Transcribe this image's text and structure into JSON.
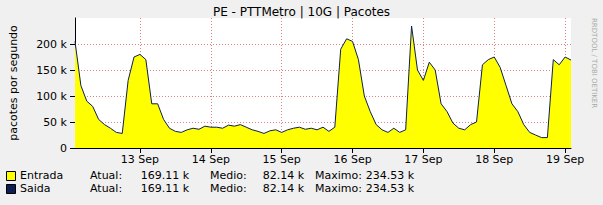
{
  "chart_data": {
    "type": "area",
    "title": "PE - PTTMetro | 10G | Pacotes",
    "y_label": "pacotes por segundo",
    "side_text": "RRDTOOL / TOBI OETIKER",
    "categories": [
      null,
      null,
      null,
      null,
      null,
      null,
      null,
      null,
      null,
      null,
      null,
      "13 Sep",
      null,
      null,
      null,
      null,
      null,
      null,
      null,
      null,
      null,
      null,
      null,
      "14 Sep",
      null,
      null,
      null,
      null,
      null,
      null,
      null,
      null,
      null,
      null,
      null,
      "15 Sep",
      null,
      null,
      null,
      null,
      null,
      null,
      null,
      null,
      null,
      null,
      null,
      "16 Sep",
      null,
      null,
      null,
      null,
      null,
      null,
      null,
      null,
      null,
      null,
      null,
      "17 Sep",
      null,
      null,
      null,
      null,
      null,
      null,
      null,
      null,
      null,
      null,
      null,
      "18 Sep",
      null,
      null,
      null,
      null,
      null,
      null,
      null,
      null,
      null,
      null,
      null,
      "19 Sep",
      null
    ],
    "series": [
      {
        "name": "Entrada",
        "color": "#ffff00",
        "type": "area",
        "stats": [
          {
            "label": "Atual:",
            "value": "169.11 k"
          },
          {
            "label": "Medio:",
            "value": "82.14 k"
          },
          {
            "label": "Maximo:",
            "value": "234.53 k"
          }
        ],
        "values": [
          205000,
          120000,
          90000,
          80000,
          55000,
          45000,
          38000,
          30000,
          28000,
          130000,
          175000,
          180000,
          170000,
          85000,
          85000,
          55000,
          38000,
          32000,
          30000,
          35000,
          38000,
          36000,
          42000,
          40000,
          40000,
          38000,
          44000,
          42000,
          45000,
          40000,
          35000,
          32000,
          28000,
          33000,
          35000,
          30000,
          35000,
          38000,
          40000,
          36000,
          38000,
          35000,
          40000,
          32000,
          40000,
          190000,
          210000,
          205000,
          170000,
          100000,
          70000,
          45000,
          35000,
          30000,
          38000,
          30000,
          35000,
          234530,
          150000,
          130000,
          165000,
          150000,
          85000,
          70000,
          48000,
          38000,
          35000,
          45000,
          50000,
          160000,
          170000,
          175000,
          155000,
          120000,
          85000,
          70000,
          45000,
          30000,
          25000,
          20000,
          20000,
          170000,
          160000,
          175000,
          169110
        ]
      },
      {
        "name": "Saida",
        "color": "#0c1f54",
        "type": "line",
        "stats": [
          {
            "label": "Atual:",
            "value": "169.11 k"
          },
          {
            "label": "Medio:",
            "value": "82.14 k"
          },
          {
            "label": "Maximo:",
            "value": "234.53 k"
          }
        ],
        "values": [
          205000,
          120000,
          90000,
          80000,
          55000,
          45000,
          38000,
          30000,
          28000,
          130000,
          175000,
          180000,
          170000,
          85000,
          85000,
          55000,
          38000,
          32000,
          30000,
          35000,
          38000,
          36000,
          42000,
          40000,
          40000,
          38000,
          44000,
          42000,
          45000,
          40000,
          35000,
          32000,
          28000,
          33000,
          35000,
          30000,
          35000,
          38000,
          40000,
          36000,
          38000,
          35000,
          40000,
          32000,
          40000,
          190000,
          210000,
          205000,
          170000,
          100000,
          70000,
          45000,
          35000,
          30000,
          38000,
          30000,
          35000,
          234530,
          150000,
          130000,
          165000,
          150000,
          85000,
          70000,
          48000,
          38000,
          35000,
          45000,
          50000,
          160000,
          170000,
          175000,
          155000,
          120000,
          85000,
          70000,
          45000,
          30000,
          25000,
          20000,
          20000,
          170000,
          160000,
          175000,
          169110
        ]
      }
    ],
    "ylim": [
      0,
      250000
    ],
    "yticks": [
      0,
      {
        "value": 50000,
        "label": "50 k"
      },
      {
        "value": 100000,
        "label": "100 k"
      },
      {
        "value": 150000,
        "label": "150 k"
      },
      {
        "value": 200000,
        "label": "200 k"
      }
    ],
    "grid": true
  }
}
